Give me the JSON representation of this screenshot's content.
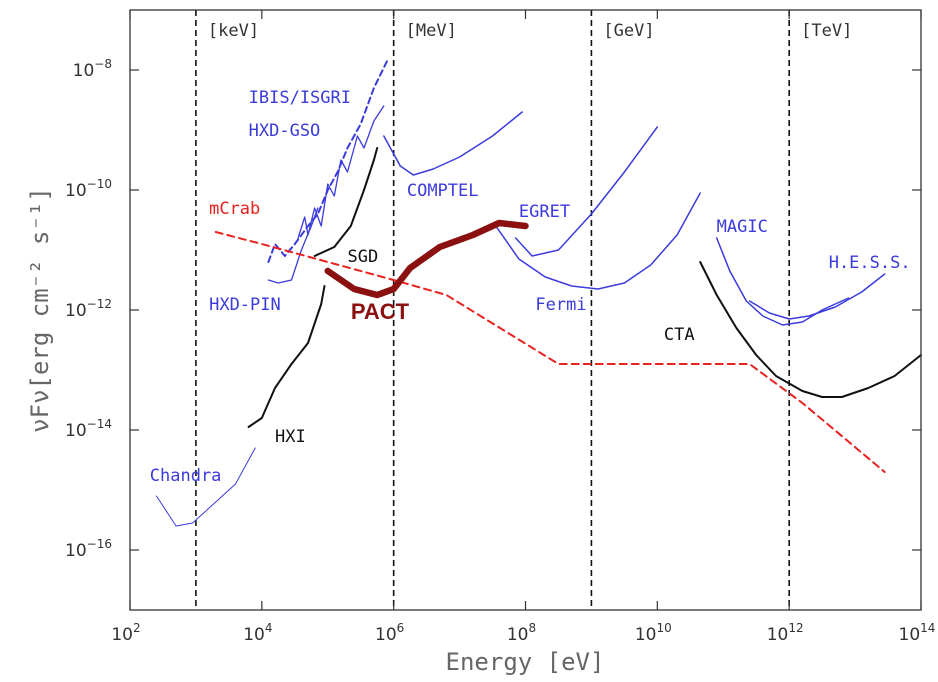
{
  "chart_data": {
    "type": "line",
    "xlabel": "Energy [eV]",
    "ylabel": "νFν[erg cm⁻² s⁻¹]",
    "x_scale": "log",
    "y_scale": "log",
    "xlim_exp": [
      2,
      14
    ],
    "ylim_exp": [
      -17,
      -7
    ],
    "x_ticks": [
      {
        "base": "10",
        "exp": "2",
        "value": 2
      },
      {
        "base": "10",
        "exp": "4",
        "value": 4
      },
      {
        "base": "10",
        "exp": "6",
        "value": 6
      },
      {
        "base": "10",
        "exp": "8",
        "value": 8
      },
      {
        "base": "10",
        "exp": "10",
        "value": 10
      },
      {
        "base": "10",
        "exp": "12",
        "value": 12
      },
      {
        "base": "10",
        "exp": "14",
        "value": 14
      }
    ],
    "y_ticks": [
      {
        "base": "10",
        "exp": "−8",
        "value": -8
      },
      {
        "base": "10",
        "exp": "−10",
        "value": -10
      },
      {
        "base": "10",
        "exp": "−12",
        "value": -12
      },
      {
        "base": "10",
        "exp": "−14",
        "value": -14
      },
      {
        "base": "10",
        "exp": "−16",
        "value": -16
      }
    ],
    "bands": [
      {
        "label": "[keV]",
        "x": 3
      },
      {
        "label": "[MeV]",
        "x": 6
      },
      {
        "label": "[GeV]",
        "x": 9
      },
      {
        "label": "[TeV]",
        "x": 12
      }
    ],
    "colors": {
      "blue": "#3b3bdd",
      "black": "#111111",
      "red": "#e8221e",
      "pact": "#8b1010"
    },
    "series": [
      {
        "name": "IBIS/ISGRI",
        "color": "blue",
        "width": 2,
        "dash": "6,4",
        "label_at": [
          3.8,
          -8.55
        ],
        "points": [
          [
            4.1,
            -11.2
          ],
          [
            4.2,
            -10.9
          ],
          [
            4.35,
            -11.1
          ],
          [
            4.5,
            -10.9
          ],
          [
            4.7,
            -10.6
          ],
          [
            4.85,
            -10.4
          ],
          [
            5.0,
            -10.0
          ],
          [
            5.15,
            -9.7
          ],
          [
            5.3,
            -9.3
          ],
          [
            5.5,
            -8.9
          ],
          [
            5.7,
            -8.3
          ],
          [
            5.9,
            -7.85
          ]
        ]
      },
      {
        "name": "HXD-GSO",
        "color": "blue",
        "width": 1.3,
        "dash": "",
        "label_at": [
          3.8,
          -9.1
        ],
        "points": [
          [
            4.55,
            -10.8
          ],
          [
            4.65,
            -10.45
          ],
          [
            4.7,
            -10.75
          ],
          [
            4.8,
            -10.3
          ],
          [
            4.9,
            -10.6
          ],
          [
            5.0,
            -9.9
          ],
          [
            5.1,
            -10.1
          ],
          [
            5.2,
            -9.5
          ],
          [
            5.3,
            -9.7
          ],
          [
            5.45,
            -9.1
          ],
          [
            5.55,
            -9.3
          ],
          [
            5.7,
            -8.85
          ],
          [
            5.85,
            -8.6
          ]
        ]
      },
      {
        "name": "SGD",
        "color": "black",
        "width": 2,
        "dash": "",
        "label_at": [
          5.3,
          -11.2
        ],
        "points": [
          [
            4.8,
            -11.1
          ],
          [
            5.1,
            -10.95
          ],
          [
            5.35,
            -10.6
          ],
          [
            5.55,
            -10.0
          ],
          [
            5.7,
            -9.5
          ],
          [
            5.75,
            -9.3
          ]
        ]
      },
      {
        "name": "HXD-PIN",
        "color": "blue",
        "width": 1.3,
        "dash": "",
        "label_at": [
          3.2,
          -12.0
        ],
        "points": [
          [
            4.1,
            -11.5
          ],
          [
            4.25,
            -11.55
          ],
          [
            4.45,
            -11.5
          ],
          [
            4.6,
            -11.0
          ],
          [
            4.75,
            -10.6
          ],
          [
            4.85,
            -10.3
          ]
        ]
      },
      {
        "name": "HXI",
        "color": "black",
        "width": 2,
        "dash": "",
        "label_at": [
          4.2,
          -14.2
        ],
        "points": [
          [
            3.8,
            -13.95
          ],
          [
            4.0,
            -13.8
          ],
          [
            4.2,
            -13.3
          ],
          [
            4.45,
            -12.9
          ],
          [
            4.7,
            -12.55
          ],
          [
            4.9,
            -11.9
          ],
          [
            4.95,
            -11.6
          ]
        ]
      },
      {
        "name": "Chandra",
        "color": "blue",
        "width": 1,
        "dash": "",
        "label_at": [
          2.3,
          -14.85
        ],
        "points": [
          [
            2.4,
            -15.1
          ],
          [
            2.7,
            -15.6
          ],
          [
            2.95,
            -15.55
          ],
          [
            3.3,
            -15.2
          ],
          [
            3.6,
            -14.9
          ],
          [
            3.9,
            -14.3
          ]
        ]
      },
      {
        "name": "COMPTEL",
        "color": "blue",
        "width": 1.5,
        "dash": "",
        "label_at": [
          6.2,
          -10.1
        ],
        "points": [
          [
            5.85,
            -9.1
          ],
          [
            6.1,
            -9.6
          ],
          [
            6.3,
            -9.75
          ],
          [
            6.6,
            -9.65
          ],
          [
            7.0,
            -9.45
          ],
          [
            7.5,
            -9.1
          ],
          [
            7.95,
            -8.7
          ]
        ]
      },
      {
        "name": "EGRET",
        "color": "blue",
        "width": 1.5,
        "dash": "",
        "label_at": [
          7.9,
          -10.45
        ],
        "points": [
          [
            7.85,
            -10.8
          ],
          [
            8.1,
            -11.1
          ],
          [
            8.5,
            -11.0
          ],
          [
            9.0,
            -10.4
          ],
          [
            9.5,
            -9.7
          ],
          [
            10.0,
            -8.95
          ]
        ]
      },
      {
        "name": "Fermi",
        "color": "blue",
        "width": 1.5,
        "dash": "",
        "label_at": [
          8.15,
          -12.0
        ],
        "points": [
          [
            7.55,
            -10.6
          ],
          [
            7.9,
            -11.15
          ],
          [
            8.3,
            -11.45
          ],
          [
            8.7,
            -11.6
          ],
          [
            9.1,
            -11.65
          ],
          [
            9.5,
            -11.55
          ],
          [
            9.9,
            -11.25
          ],
          [
            10.3,
            -10.75
          ],
          [
            10.55,
            -10.25
          ],
          [
            10.65,
            -10.05
          ]
        ]
      },
      {
        "name": "MAGIC",
        "color": "blue",
        "width": 1.5,
        "dash": "",
        "label_at": [
          10.9,
          -10.7
        ],
        "points": [
          [
            10.9,
            -10.8
          ],
          [
            11.1,
            -11.35
          ],
          [
            11.35,
            -11.85
          ],
          [
            11.6,
            -12.1
          ],
          [
            11.9,
            -12.25
          ],
          [
            12.2,
            -12.2
          ],
          [
            12.5,
            -12.0
          ],
          [
            12.9,
            -11.8
          ]
        ]
      },
      {
        "name": "H.E.S.S.",
        "color": "blue",
        "width": 1.5,
        "dash": "",
        "label_at": [
          12.6,
          -11.3
        ],
        "points": [
          [
            11.4,
            -11.85
          ],
          [
            11.7,
            -12.05
          ],
          [
            12.0,
            -12.15
          ],
          [
            12.3,
            -12.1
          ],
          [
            12.7,
            -11.95
          ],
          [
            13.1,
            -11.7
          ],
          [
            13.45,
            -11.4
          ]
        ]
      },
      {
        "name": "CTA",
        "color": "black",
        "width": 2,
        "dash": "",
        "label_at": [
          10.1,
          -12.5
        ],
        "points": [
          [
            10.65,
            -11.2
          ],
          [
            10.9,
            -11.75
          ],
          [
            11.2,
            -12.3
          ],
          [
            11.5,
            -12.75
          ],
          [
            11.8,
            -13.1
          ],
          [
            12.2,
            -13.35
          ],
          [
            12.5,
            -13.45
          ],
          [
            12.8,
            -13.45
          ],
          [
            13.2,
            -13.3
          ],
          [
            13.6,
            -13.1
          ],
          [
            14.0,
            -12.75
          ]
        ]
      },
      {
        "name": "mCrab",
        "color": "red",
        "width": 2,
        "dash": "7,5",
        "label_at": [
          3.2,
          -10.4
        ],
        "points": [
          [
            3.3,
            -10.7
          ],
          [
            4.0,
            -10.9
          ],
          [
            5.0,
            -11.2
          ],
          [
            6.0,
            -11.5
          ],
          [
            6.8,
            -11.75
          ],
          [
            8.5,
            -12.9
          ],
          [
            11.4,
            -12.9
          ],
          [
            12.2,
            -13.55
          ],
          [
            13.45,
            -14.7
          ]
        ]
      },
      {
        "name": "PACT",
        "color": "pact",
        "width": 6.5,
        "dash": "",
        "label_at": [
          5.35,
          -12.15
        ],
        "points": [
          [
            5.0,
            -11.35
          ],
          [
            5.4,
            -11.65
          ],
          [
            5.75,
            -11.75
          ],
          [
            6.0,
            -11.65
          ],
          [
            6.25,
            -11.3
          ],
          [
            6.7,
            -10.95
          ],
          [
            7.2,
            -10.75
          ],
          [
            7.6,
            -10.55
          ],
          [
            8.0,
            -10.6
          ]
        ]
      }
    ]
  }
}
